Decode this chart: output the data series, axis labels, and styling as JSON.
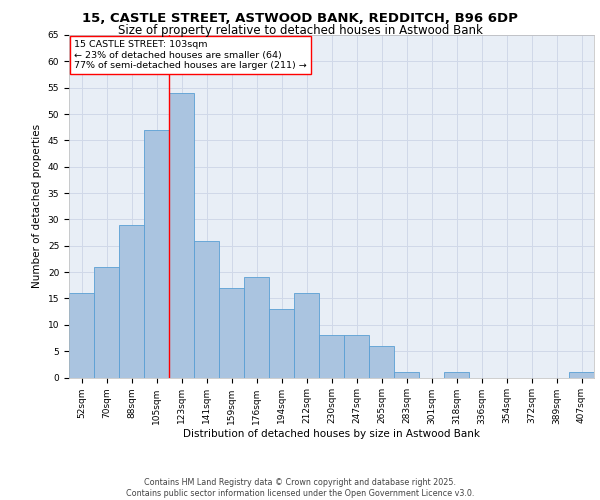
{
  "title_line1": "15, CASTLE STREET, ASTWOOD BANK, REDDITCH, B96 6DP",
  "title_line2": "Size of property relative to detached houses in Astwood Bank",
  "xlabel": "Distribution of detached houses by size in Astwood Bank",
  "ylabel": "Number of detached properties",
  "categories": [
    "52sqm",
    "70sqm",
    "88sqm",
    "105sqm",
    "123sqm",
    "141sqm",
    "159sqm",
    "176sqm",
    "194sqm",
    "212sqm",
    "230sqm",
    "247sqm",
    "265sqm",
    "283sqm",
    "301sqm",
    "318sqm",
    "336sqm",
    "354sqm",
    "372sqm",
    "389sqm",
    "407sqm"
  ],
  "values": [
    16,
    21,
    29,
    47,
    54,
    26,
    17,
    19,
    13,
    16,
    8,
    8,
    6,
    1,
    0,
    1,
    0,
    0,
    0,
    0,
    1
  ],
  "bar_color": "#aac4e0",
  "bar_edge_color": "#5a9fd4",
  "grid_color": "#d0d8e8",
  "background_color": "#e8eef6",
  "annotation_box_text": "15 CASTLE STREET: 103sqm\n← 23% of detached houses are smaller (64)\n77% of semi-detached houses are larger (211) →",
  "vline_x": 3.5,
  "ylim": [
    0,
    65
  ],
  "yticks": [
    0,
    5,
    10,
    15,
    20,
    25,
    30,
    35,
    40,
    45,
    50,
    55,
    60,
    65
  ],
  "footer_text": "Contains HM Land Registry data © Crown copyright and database right 2025.\nContains public sector information licensed under the Open Government Licence v3.0.",
  "title_fontsize": 9.5,
  "subtitle_fontsize": 8.5,
  "axis_label_fontsize": 7.5,
  "tick_fontsize": 6.5,
  "annotation_fontsize": 6.8,
  "footer_fontsize": 5.8
}
